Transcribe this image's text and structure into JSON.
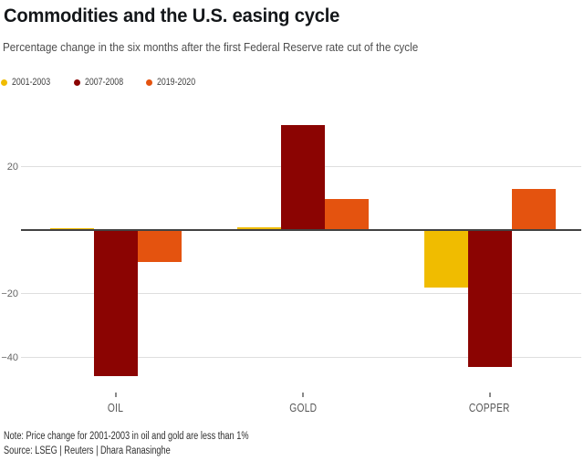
{
  "header": {
    "title": "Commodities and the U.S. easing cycle",
    "subtitle": "Percentage change in the six months after the first Federal Reserve rate cut of the cycle"
  },
  "chart_data": {
    "type": "bar",
    "title": "Commodities and the U.S. easing cycle",
    "subtitle": "Percentage change in the six months after the first Federal Reserve rate cut of the cycle",
    "categories": [
      "OIL",
      "GOLD",
      "COPPER"
    ],
    "series": [
      {
        "name": "2001-2003",
        "color": "#F0BC00",
        "values": [
          0.7,
          0.9,
          -18
        ]
      },
      {
        "name": "2007-2008",
        "color": "#8B0402",
        "values": [
          -46,
          33,
          -43
        ]
      },
      {
        "name": "2019-2020",
        "color": "#E4530F",
        "values": [
          -10,
          10,
          13
        ]
      }
    ],
    "y_ticks": [
      {
        "value": 20,
        "label": "20"
      },
      {
        "value": -20,
        "label": "−20"
      },
      {
        "value": -40,
        "label": "−40"
      }
    ],
    "ylim": [
      -50,
      36
    ],
    "grid": true,
    "zero_axis": true,
    "legend_position": "top-left",
    "ylabel": "",
    "xlabel": ""
  },
  "footer": {
    "note": "Note: Price change for 2001-2003 in oil and gold are less than 1%",
    "source": "Source: LSEG | Reuters | Dhara Ranasinghe"
  }
}
